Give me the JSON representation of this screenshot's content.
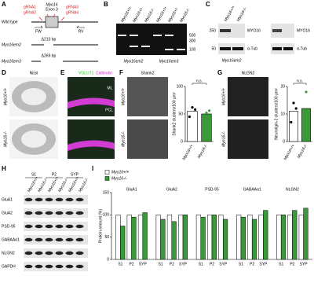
{
  "panel_a": {
    "label": "A",
    "exon_label": [
      "Myo16",
      "Exon 3"
    ],
    "grnas": [
      "gRNA1",
      "gRNA2",
      "gRNA3",
      "gRNA4"
    ],
    "wild_type": "Wild type",
    "primers": [
      "FW",
      "RV"
    ],
    "alleles": [
      {
        "name": "Myo16em2",
        "deletion": "Δ210 bp"
      },
      {
        "name": "Myo16em3",
        "deletion": "Δ269 bp"
      }
    ]
  },
  "panel_b": {
    "label": "B",
    "lanes": [
      "Myo16+/+",
      "Myo16+/-",
      "Myo16-/-",
      "Myo16+/+",
      "Myo16+/-",
      "Myo16-/-"
    ],
    "markers": [
      "500",
      "300",
      "100"
    ],
    "groups": [
      "Myo16em2",
      "Myo16em3"
    ]
  },
  "panel_c": {
    "label": "C",
    "lanes": [
      "Myo16+/+",
      "Myo16-/-"
    ],
    "markers": [
      "250",
      "50"
    ],
    "blots": [
      [
        "MYO16",
        "α-Tub"
      ],
      [
        "MYO16",
        "α-Tub"
      ]
    ],
    "group": "Myo16em2"
  },
  "panel_d": {
    "label": "D",
    "stain": "Nissl",
    "genotypes": [
      "Myo16+/+",
      "Myo16-/-"
    ]
  },
  "panel_e": {
    "label": "E",
    "stains": [
      "VGLUT1",
      "Calbindin"
    ],
    "layers": [
      "ML",
      "PCL"
    ]
  },
  "panel_f": {
    "label": "F",
    "stain": "Shank2",
    "genotypes": [
      "Myo16+/+",
      "Myo16-/-"
    ]
  },
  "panel_g": {
    "label": "G",
    "stain": "NLGN2",
    "genotypes": [
      "Myo16+/+",
      "Myo16-/-"
    ]
  },
  "panel_h": {
    "label": "H",
    "fractions": [
      "S1",
      "P2",
      "SYP"
    ],
    "lanes": [
      "Myo16+/+",
      "Myo16-/-",
      "Myo16+/+",
      "Myo16-/-",
      "Myo16+/+",
      "Myo16-/-"
    ],
    "proteins": [
      "GluA1",
      "GluA2",
      "PSD-95",
      "GABAAα1",
      "NLGN2",
      "GAPDH"
    ]
  },
  "panel_i": {
    "label": "I"
  },
  "chart_data": [
    {
      "type": "bar",
      "ylabel": "Shank2 clusters/100 μm²",
      "categories": [
        "Myo16+/+",
        "Myo16-/-"
      ],
      "values": [
        55,
        50
      ],
      "colors": [
        "#ffffff",
        "#3a9a3a"
      ],
      "points": [
        [
          45,
          62,
          58
        ],
        [
          40,
          52,
          56
        ]
      ],
      "ylim": [
        0,
        100
      ],
      "yticks": [
        0,
        50,
        100
      ],
      "annotation": "n.s."
    },
    {
      "type": "bar",
      "ylabel": "Neuroligin-2 clusters/100 μm²",
      "categories": [
        "Myo16+/+",
        "Myo16-/-"
      ],
      "values": [
        11,
        12
      ],
      "colors": [
        "#ffffff",
        "#3a9a3a"
      ],
      "points": [
        [
          7,
          14,
          12
        ],
        [
          8,
          18,
          10
        ]
      ],
      "ylim": [
        0,
        20
      ],
      "yticks": [
        0,
        10,
        20
      ],
      "annotation": "n.s."
    },
    {
      "type": "grouped_bar",
      "ylabel": "Protein amount (%)",
      "groups": [
        "GluA1",
        "GluA2",
        "PSD-95",
        "GABAAα1",
        "NLGN2"
      ],
      "categories": [
        "S1",
        "P2",
        "SYP",
        "S1",
        "P2",
        "SYP",
        "S1",
        "P2",
        "SYP",
        "S1",
        "P2",
        "SYP",
        "S1",
        "P2",
        "SYP"
      ],
      "series": [
        {
          "name": "Myo16+/+",
          "color": "#ffffff",
          "values": [
            100,
            100,
            100,
            100,
            100,
            100,
            100,
            100,
            100,
            100,
            100,
            100,
            100,
            100,
            100
          ]
        },
        {
          "name": "Myo16-/-",
          "color": "#3a9a3a",
          "values": [
            75,
            95,
            105,
            90,
            85,
            100,
            95,
            100,
            90,
            95,
            90,
            110,
            100,
            110,
            115
          ]
        }
      ],
      "ylim": [
        0,
        150
      ],
      "yticks": [
        0,
        50,
        100,
        150
      ]
    }
  ]
}
